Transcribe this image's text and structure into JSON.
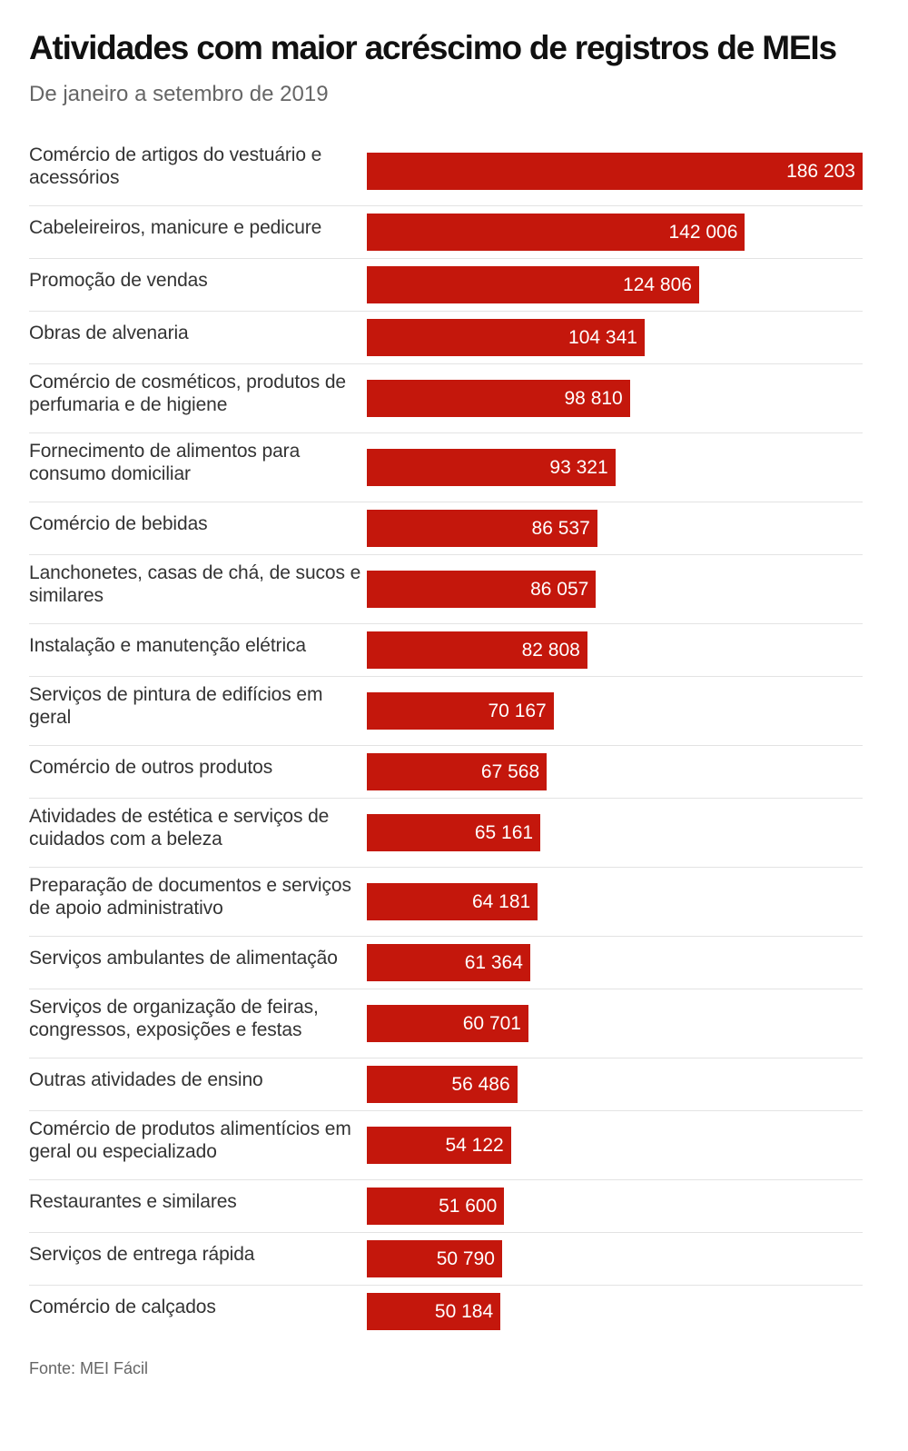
{
  "chart_data": {
    "type": "bar",
    "orientation": "horizontal",
    "title": "Atividades com maior acréscimo de registros de MEIs",
    "subtitle": "De janeiro a setembro de 2019",
    "source": "Fonte: MEI Fácil",
    "bar_color": "#c4170c",
    "label_color": "#333333",
    "value_label_color": "#ffffff",
    "xlim": [
      0,
      186203
    ],
    "grid": false,
    "legend": "none",
    "categories": [
      "Comércio de artigos do vestuário e acessórios",
      "Cabeleireiros, manicure e pedicure",
      "Promoção de vendas",
      "Obras de alvenaria",
      "Comércio de cosméticos, produtos de perfumaria e de higiene",
      "Fornecimento de alimentos para consumo domiciliar",
      "Comércio de bebidas",
      "Lanchonetes, casas de chá, de sucos e similares",
      "Instalação e manutenção elétrica",
      "Serviços de pintura de edifícios em geral",
      "Comércio de outros produtos",
      "Atividades de estética e serviços de cuidados com a beleza",
      "Preparação de documentos e serviços de apoio administrativo",
      "Serviços ambulantes de alimentação",
      "Serviços de organização de feiras, congressos, exposições e festas",
      "Outras atividades de ensino",
      "Comércio de produtos alimentícios em geral ou especializado",
      "Restaurantes e similares",
      "Serviços de entrega rápida",
      "Comércio de calçados"
    ],
    "values": [
      186203,
      142006,
      124806,
      104341,
      98810,
      93321,
      86537,
      86057,
      82808,
      70167,
      67568,
      65161,
      64181,
      61364,
      60701,
      56486,
      54122,
      51600,
      50790,
      50184
    ],
    "value_labels": [
      "186 203",
      "142 006",
      "124 806",
      "104 341",
      "98 810",
      "93 321",
      "86 537",
      "86 057",
      "82 808",
      "70 167",
      "67 568",
      "65 161",
      "64 181",
      "61 364",
      "60 701",
      "56 486",
      "54 122",
      "51 600",
      "50 790",
      "50 184"
    ]
  }
}
